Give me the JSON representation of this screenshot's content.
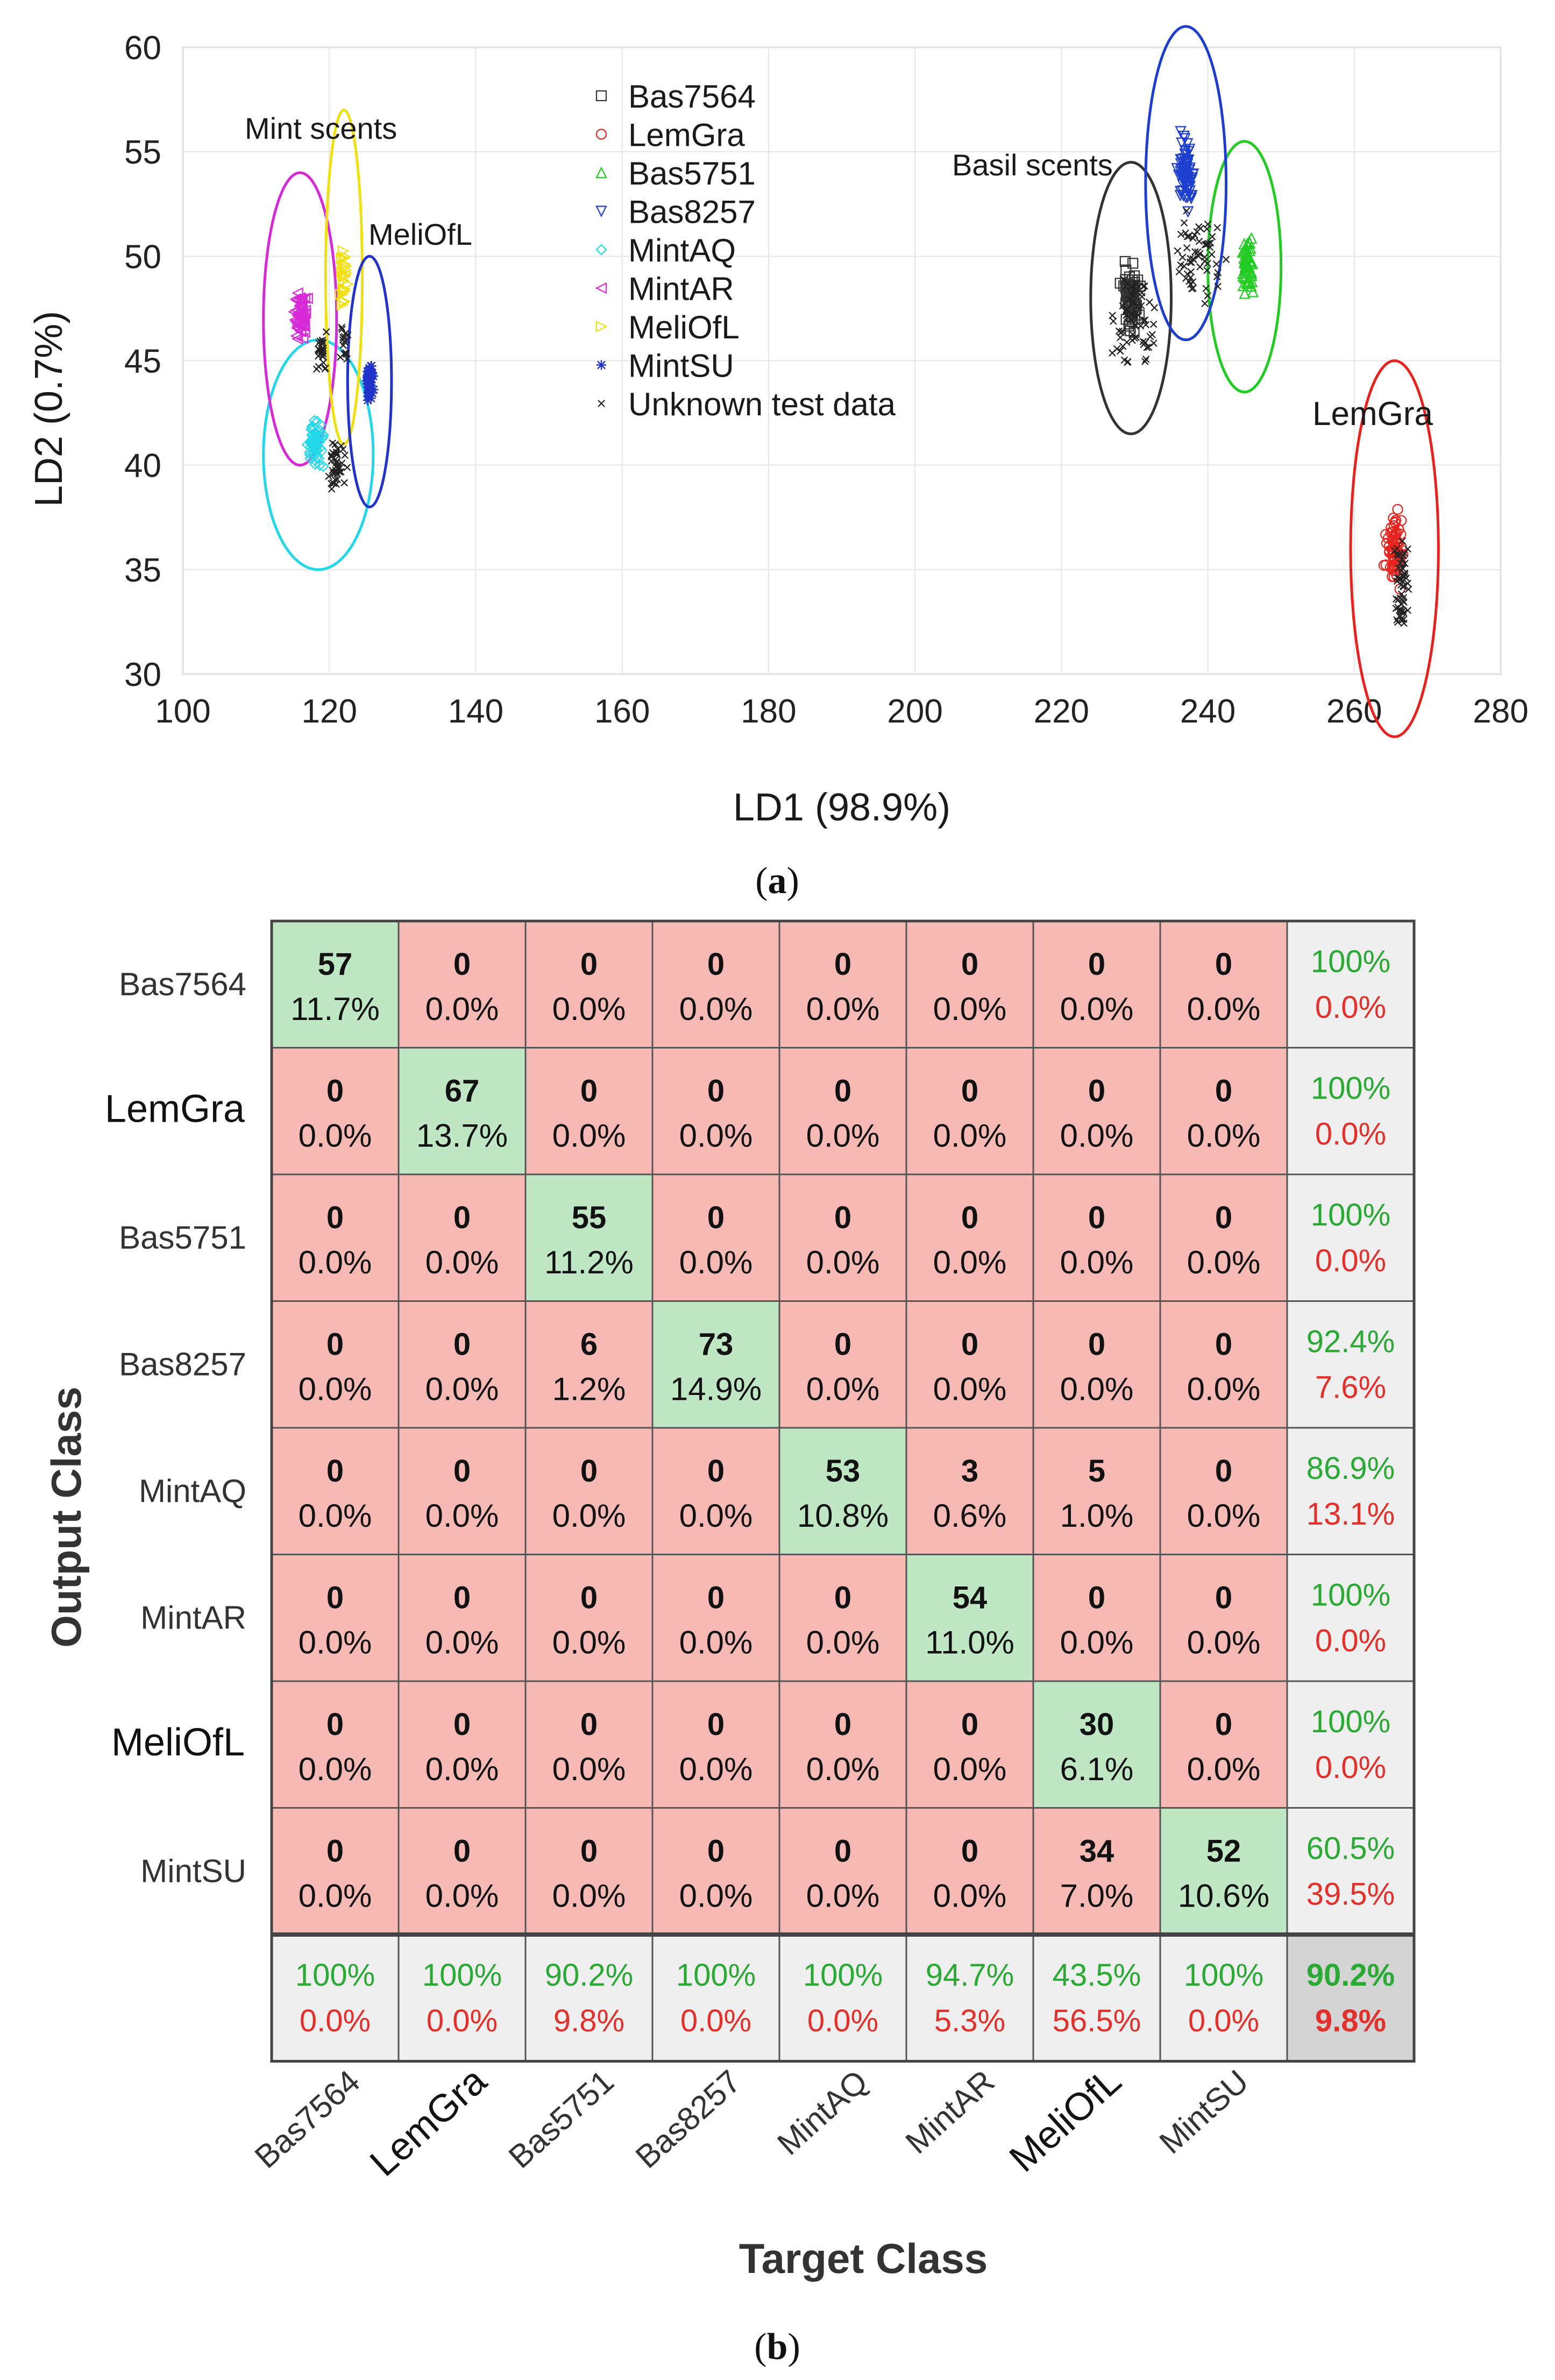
{
  "panel_a_label": "a",
  "panel_b_label": "b",
  "colors": {
    "correct_cell": "#bfe7c4",
    "wrong_cell": "#f7b9b4",
    "summary_cell": "#efefef",
    "overall_cell": "#d4d4d4",
    "good_text": "#2aaa35",
    "bad_text": "#e4302a"
  },
  "chart_data": [
    {
      "type": "scatter",
      "title": "",
      "xlabel": "LD1 (98.9%)",
      "ylabel": "LD2 (0.7%)",
      "xlim": [
        100,
        280
      ],
      "ylim": [
        30,
        60
      ],
      "xticks": [
        100,
        120,
        140,
        160,
        180,
        200,
        220,
        240,
        260,
        280
      ],
      "yticks": [
        30,
        35,
        40,
        45,
        50,
        55,
        60
      ],
      "grid": true,
      "legend_position": "top-center",
      "annotations": [
        "Mint scents",
        "MeliOfL",
        "Basil scents",
        "LemGra"
      ],
      "series": [
        {
          "name": "Bas7564",
          "marker": "square",
          "color": "#333333",
          "center": [
            229.5,
            48
          ],
          "spread": [
            1.6,
            2.2
          ],
          "n": 57,
          "ellipse": [
            229.5,
            48,
            5.5,
            6.5
          ]
        },
        {
          "name": "LemGra",
          "marker": "circle",
          "color": "#e8221c",
          "center": [
            265.5,
            36
          ],
          "spread": [
            1.6,
            2.2
          ],
          "n": 67,
          "ellipse": [
            265.5,
            36,
            6,
            9
          ]
        },
        {
          "name": "Bas5751",
          "marker": "triangle-up",
          "color": "#22cc22",
          "center": [
            245.5,
            49.5
          ],
          "spread": [
            1.2,
            1.6
          ],
          "n": 55,
          "ellipse": [
            245,
            49.5,
            5,
            6
          ]
        },
        {
          "name": "Bas8257",
          "marker": "triangle-down",
          "color": "#1d3fcf",
          "center": [
            237,
            54
          ],
          "spread": [
            1.4,
            2.2
          ],
          "n": 73,
          "ellipse": [
            237,
            53.5,
            5.5,
            7.5
          ]
        },
        {
          "name": "MintAQ",
          "marker": "diamond",
          "color": "#22d8e8",
          "center": [
            118,
            41
          ],
          "spread": [
            1.6,
            1.5
          ],
          "n": 53,
          "ellipse": [
            118.5,
            40.5,
            7.5,
            5.5
          ]
        },
        {
          "name": "MintAR",
          "marker": "triangle-left",
          "color": "#d829d8",
          "center": [
            116,
            47
          ],
          "spread": [
            1.2,
            1.8
          ],
          "n": 54,
          "ellipse": [
            116,
            47,
            5,
            7
          ]
        },
        {
          "name": "MeliOfL",
          "marker": "triangle-right",
          "color": "#f0e010",
          "center": [
            122,
            49
          ],
          "spread": [
            0.6,
            2.0
          ],
          "n": 30,
          "ellipse": [
            122,
            49,
            2.5,
            8
          ]
        },
        {
          "name": "MintSU",
          "marker": "star",
          "color": "#2233cc",
          "center": [
            125.5,
            44
          ],
          "spread": [
            0.7,
            1.1
          ],
          "n": 52,
          "ellipse": [
            125.5,
            44,
            3,
            6
          ]
        },
        {
          "name": "Unknown test data",
          "marker": "x",
          "color": "#222222",
          "clusters": [
            [
              230,
              47,
              3.5,
              3.5,
              70
            ],
            [
              239,
              50,
              4.5,
              3.5,
              60
            ],
            [
              266.5,
              34,
              1.4,
              3.5,
              55
            ],
            [
              121,
              40,
              1.6,
              1.8,
              40
            ],
            [
              119,
              45.5,
              1.2,
              1.5,
              25
            ],
            [
              122,
              46,
              0.8,
              1.2,
              15
            ]
          ]
        }
      ]
    },
    {
      "type": "heatmap",
      "title": "",
      "xlabel": "Target Class",
      "ylabel": "Output Class",
      "classes": [
        "Bas7564",
        "LemGra",
        "Bas5751",
        "Bas8257",
        "MintAQ",
        "MintAR",
        "MeliOfL",
        "MintSU"
      ],
      "counts": [
        [
          57,
          0,
          0,
          0,
          0,
          0,
          0,
          0
        ],
        [
          0,
          67,
          0,
          0,
          0,
          0,
          0,
          0
        ],
        [
          0,
          0,
          55,
          0,
          0,
          0,
          0,
          0
        ],
        [
          0,
          0,
          6,
          73,
          0,
          0,
          0,
          0
        ],
        [
          0,
          0,
          0,
          0,
          53,
          3,
          5,
          0
        ],
        [
          0,
          0,
          0,
          0,
          0,
          54,
          0,
          0
        ],
        [
          0,
          0,
          0,
          0,
          0,
          0,
          30,
          0
        ],
        [
          0,
          0,
          0,
          0,
          0,
          0,
          34,
          52
        ]
      ],
      "percents": [
        [
          "11.7%",
          "0.0%",
          "0.0%",
          "0.0%",
          "0.0%",
          "0.0%",
          "0.0%",
          "0.0%"
        ],
        [
          "0.0%",
          "13.7%",
          "0.0%",
          "0.0%",
          "0.0%",
          "0.0%",
          "0.0%",
          "0.0%"
        ],
        [
          "0.0%",
          "0.0%",
          "11.2%",
          "0.0%",
          "0.0%",
          "0.0%",
          "0.0%",
          "0.0%"
        ],
        [
          "0.0%",
          "0.0%",
          "1.2%",
          "14.9%",
          "0.0%",
          "0.0%",
          "0.0%",
          "0.0%"
        ],
        [
          "0.0%",
          "0.0%",
          "0.0%",
          "0.0%",
          "10.8%",
          "0.6%",
          "1.0%",
          "0.0%"
        ],
        [
          "0.0%",
          "0.0%",
          "0.0%",
          "0.0%",
          "0.0%",
          "11.0%",
          "0.0%",
          "0.0%"
        ],
        [
          "0.0%",
          "0.0%",
          "0.0%",
          "0.0%",
          "0.0%",
          "0.0%",
          "6.1%",
          "0.0%"
        ],
        [
          "0.0%",
          "0.0%",
          "0.0%",
          "0.0%",
          "0.0%",
          "0.0%",
          "7.0%",
          "10.6%"
        ]
      ],
      "row_summary": [
        [
          "100%",
          "0.0%"
        ],
        [
          "100%",
          "0.0%"
        ],
        [
          "100%",
          "0.0%"
        ],
        [
          "92.4%",
          "7.6%"
        ],
        [
          "86.9%",
          "13.1%"
        ],
        [
          "100%",
          "0.0%"
        ],
        [
          "100%",
          "0.0%"
        ],
        [
          "60.5%",
          "39.5%"
        ]
      ],
      "col_summary": [
        [
          "100%",
          "0.0%"
        ],
        [
          "100%",
          "0.0%"
        ],
        [
          "90.2%",
          "9.8%"
        ],
        [
          "100%",
          "0.0%"
        ],
        [
          "100%",
          "0.0%"
        ],
        [
          "94.7%",
          "5.3%"
        ],
        [
          "43.5%",
          "56.5%"
        ],
        [
          "100%",
          "0.0%"
        ]
      ],
      "overall": [
        "90.2%",
        "9.8%"
      ]
    }
  ]
}
